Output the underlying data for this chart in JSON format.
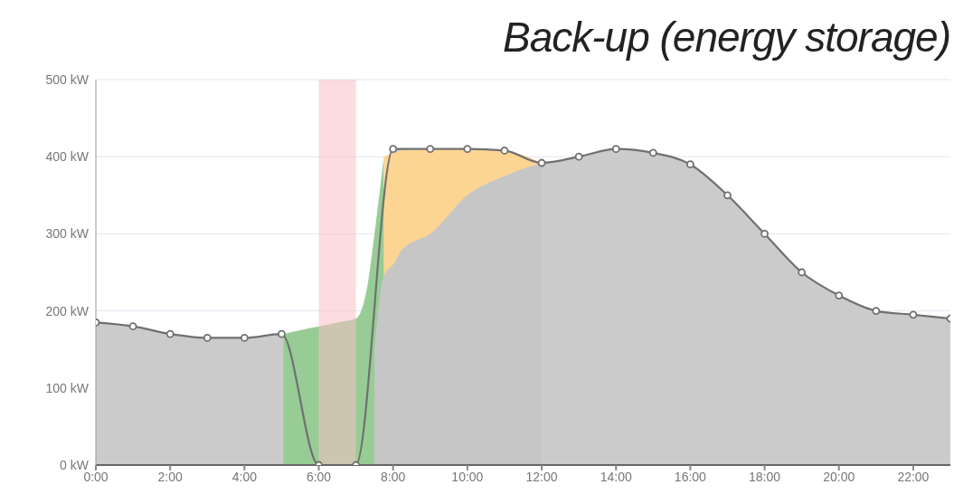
{
  "chart_data": {
    "type": "area",
    "title": "Back-up (energy storage)",
    "xlim": [
      0,
      23
    ],
    "xticks": [
      {
        "value": 0,
        "label": "0:00"
      },
      {
        "value": 2,
        "label": "2:00"
      },
      {
        "value": 4,
        "label": "4:00"
      },
      {
        "value": 6,
        "label": "6:00"
      },
      {
        "value": 8,
        "label": "8:00"
      },
      {
        "value": 10,
        "label": "10:00"
      },
      {
        "value": 12,
        "label": "12:00"
      },
      {
        "value": 14,
        "label": "14:00"
      },
      {
        "value": 16,
        "label": "16:00"
      },
      {
        "value": 18,
        "label": "18:00"
      },
      {
        "value": 20,
        "label": "20:00"
      },
      {
        "value": 22,
        "label": "22:00"
      }
    ],
    "ylim": [
      0,
      500
    ],
    "yticks": [
      {
        "value": 0,
        "label": "0 kW"
      },
      {
        "value": 100,
        "label": "100 kW"
      },
      {
        "value": 200,
        "label": "200 kW"
      },
      {
        "value": 300,
        "label": "300 kW"
      },
      {
        "value": 400,
        "label": "400 kW"
      },
      {
        "value": 500,
        "label": "500 kW"
      }
    ],
    "grid": "y",
    "bands": [
      {
        "axis": "x",
        "from": 6,
        "to": 7,
        "color": "#f9c0c6"
      }
    ],
    "series": [
      {
        "color": "#cbcbcb",
        "marker": "circle",
        "x": [
          0,
          1,
          2,
          3,
          4,
          5,
          6,
          7,
          8,
          9,
          10,
          11,
          12,
          13,
          14,
          15,
          16,
          17,
          18,
          19,
          20,
          21,
          22,
          23
        ],
        "values": [
          185,
          180,
          170,
          165,
          165,
          170,
          0,
          0,
          410,
          410,
          410,
          408,
          392,
          400,
          410,
          405,
          390,
          350,
          300,
          250,
          220,
          200,
          195,
          190
        ]
      },
      {
        "color": "#97cc94",
        "x": [
          5.05,
          5.5,
          6,
          6.5,
          7,
          7.3,
          7.5,
          7.75
        ],
        "values": [
          170,
          175,
          180,
          185,
          190,
          230,
          300,
          400
        ]
      },
      {
        "color": "#fcd592",
        "x": [
          7.75,
          8.5,
          9.5,
          10.5,
          11.5,
          12
        ],
        "values": [
          400,
          410,
          410,
          410,
          402,
          392
        ]
      },
      {
        "color": "#c6c6c6",
        "x": [
          7.5,
          7.75,
          8,
          8.25,
          9,
          10,
          11,
          12
        ],
        "values": [
          150,
          245,
          260,
          280,
          300,
          350,
          375,
          392
        ]
      }
    ]
  }
}
